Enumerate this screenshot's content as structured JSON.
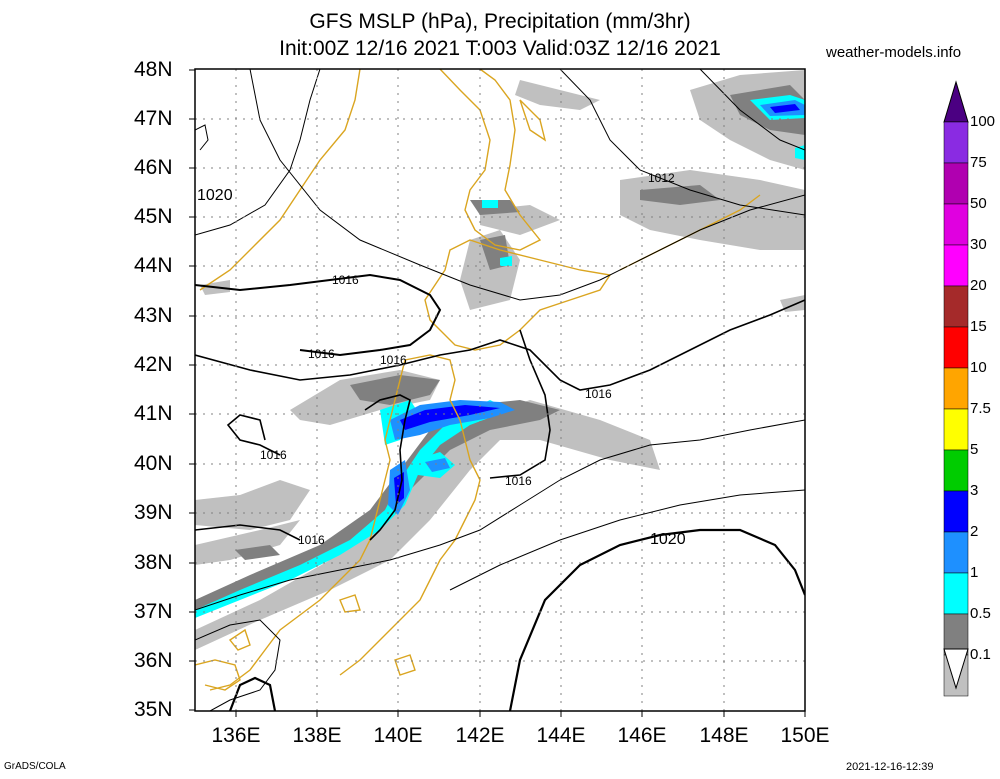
{
  "title": {
    "line1": "GFS MSLP (hPa), Precipitation (mm/3hr)",
    "line2": "Init:00Z 12/16 2021 T:003 Valid:03Z 12/16 2021"
  },
  "brand": "weather-models.info",
  "footer": {
    "left": "GrADS/COLA",
    "right": "2021-12-16-12:39"
  },
  "map": {
    "lat_labels": [
      "48N",
      "47N",
      "46N",
      "45N",
      "44N",
      "43N",
      "42N",
      "41N",
      "40N",
      "39N",
      "38N",
      "37N",
      "36N",
      "35N"
    ],
    "lon_labels": [
      "136E",
      "138E",
      "140E",
      "142E",
      "144E",
      "146E",
      "148E",
      "150E"
    ],
    "lat_range": [
      35,
      48
    ],
    "lon_range": [
      135,
      150
    ],
    "gridlines": "dotted",
    "isobar_labels": [
      "1020",
      "1012",
      "1016",
      "1016",
      "1016",
      "1016",
      "1016",
      "1016",
      "1016",
      "1020"
    ]
  },
  "colorbar": {
    "labels": [
      "100",
      "75",
      "50",
      "30",
      "20",
      "15",
      "10",
      "7.5",
      "5",
      "3",
      "2",
      "1",
      "0.5",
      "0.1"
    ],
    "colors": [
      "#8a2be2",
      "#b000b0",
      "#e000e0",
      "#ff00ff",
      "#a52a2a",
      "#ff0000",
      "#ffa500",
      "#ffff00",
      "#00cc00",
      "#0000ff",
      "#1e90ff",
      "#00ffff",
      "#808080",
      "#c0c0c0"
    ],
    "top_color": "#4b0082"
  },
  "colors": {
    "coastline": "#daa520",
    "isobar": "#000000",
    "light_precip": "#c0c0c0",
    "medium_precip": "#808080"
  }
}
